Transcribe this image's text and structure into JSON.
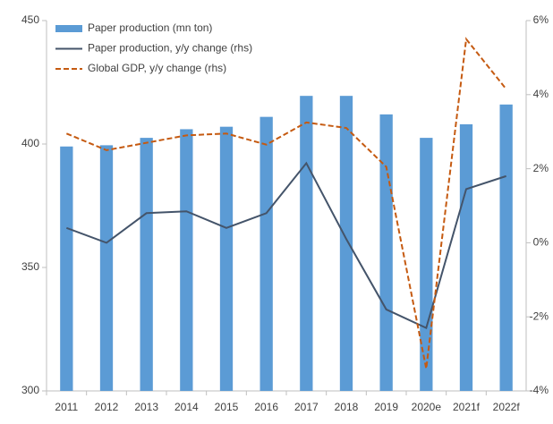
{
  "chart_data": {
    "type": "bar-line",
    "categories": [
      "2011",
      "2012",
      "2013",
      "2014",
      "2015",
      "2016",
      "2017",
      "2018",
      "2019",
      "2020e",
      "2021f",
      "2022f"
    ],
    "series": [
      {
        "name": "Paper production (mn ton)",
        "type": "bar",
        "color": "#5b9bd5",
        "values": [
          399,
          399.5,
          402.5,
          406,
          407,
          411,
          419.5,
          419.5,
          412,
          402.5,
          408,
          416
        ]
      },
      {
        "name": "Paper production, y/y change (rhs)",
        "type": "line",
        "axis": "y2",
        "color": "#44546a",
        "linestyle": "solid",
        "values": [
          0.4,
          0.0,
          0.8,
          0.85,
          0.4,
          0.8,
          2.15,
          0.1,
          -1.8,
          -2.3,
          1.45,
          1.8
        ]
      },
      {
        "name": "Global GDP, y/y change (rhs)",
        "type": "line",
        "axis": "y2",
        "color": "#c55a11",
        "linestyle": "dashed",
        "values": [
          2.95,
          2.5,
          2.7,
          2.9,
          2.95,
          2.65,
          3.25,
          3.1,
          2.05,
          -3.4,
          5.5,
          4.15
        ]
      }
    ],
    "ylim": [
      300,
      450
    ],
    "yticks": [
      300,
      350,
      400,
      450
    ],
    "y2lim": [
      -4,
      6
    ],
    "y2ticks": [
      {
        "value": -4,
        "label": "-4%"
      },
      {
        "value": -2,
        "label": "-2%"
      },
      {
        "value": 0,
        "label": "0%"
      },
      {
        "value": 2,
        "label": "2%"
      },
      {
        "value": 4,
        "label": "4%"
      },
      {
        "value": 6,
        "label": "6%"
      }
    ],
    "grid": false,
    "legend": "upper left"
  }
}
